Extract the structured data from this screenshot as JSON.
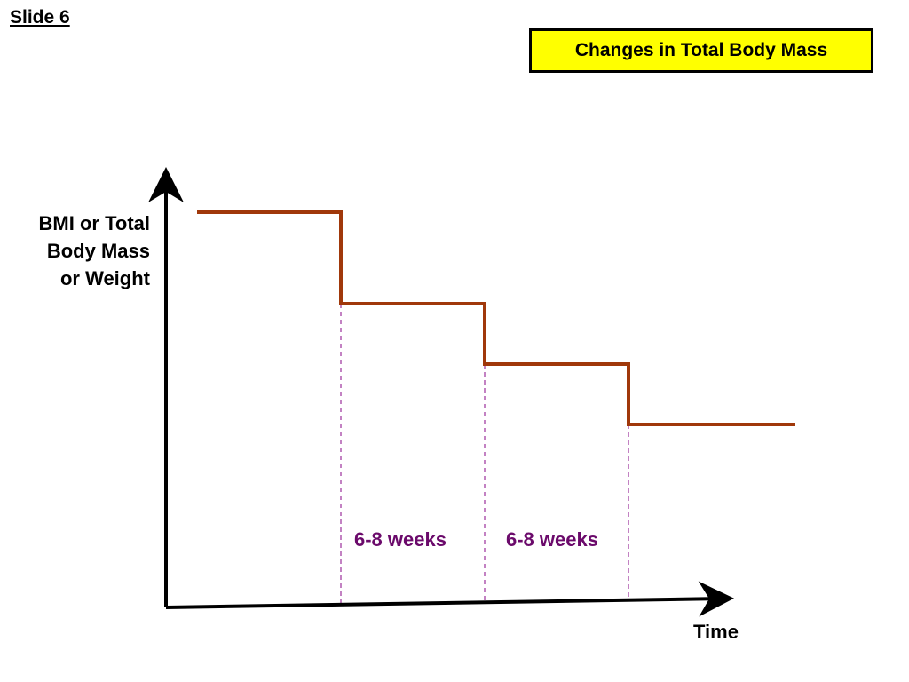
{
  "slide": {
    "label": "Slide 6"
  },
  "title": "Changes in Total Body Mass",
  "axes": {
    "y_label_lines": [
      "BMI or Total",
      "Body Mass",
      "or Weight"
    ],
    "x_label": "Time"
  },
  "intervals": [
    {
      "label": "6-8 weeks"
    },
    {
      "label": "6-8 weeks"
    }
  ],
  "colors": {
    "step_line": "#a0380a",
    "interval_text": "#6b0a6b",
    "dashed_guides": "#9b2f9b",
    "title_background": "#ffff00",
    "axes": "#000000"
  }
}
